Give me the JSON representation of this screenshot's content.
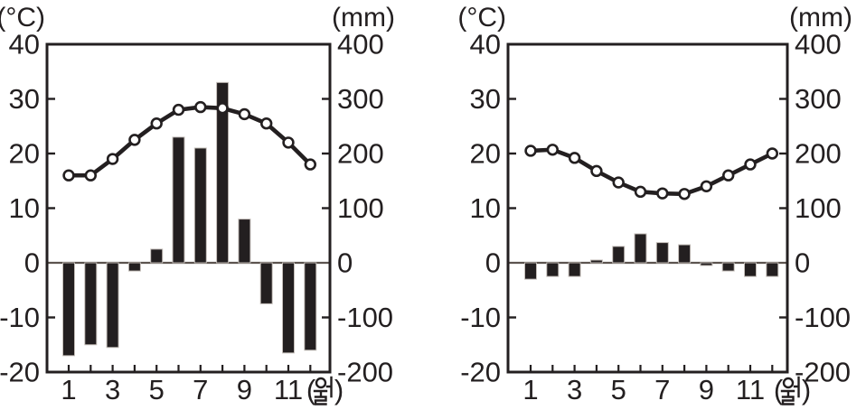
{
  "colors": {
    "ink": "#231f20",
    "background": "#ffffff",
    "marker_fill": "#ffffff",
    "zero_line": "#5c544f",
    "bar_outline": "#c4beb9"
  },
  "chart_data": [
    {
      "name": "climograph-left",
      "type": "combo-bar-line",
      "layout": {
        "grid": false,
        "legend": false
      },
      "temperature_axis": {
        "unit_label": "(°C)",
        "min": -20,
        "max": 40,
        "ticks": [
          40,
          30,
          20,
          10,
          0,
          -10,
          -20
        ]
      },
      "precipitation_axis": {
        "unit_label": "(mm)",
        "min": -200,
        "max": 400,
        "ticks": [
          400,
          300,
          200,
          100,
          0,
          -100,
          -200
        ]
      },
      "x_axis": {
        "unit_label": "(월)",
        "unit_label_parts": {
          "open": "(",
          "close": ")"
        },
        "months": [
          1,
          2,
          3,
          4,
          5,
          6,
          7,
          8,
          9,
          10,
          11,
          12
        ],
        "labeled_months": [
          1,
          3,
          5,
          7,
          9,
          11
        ]
      },
      "line_series": {
        "name": "temperature",
        "unit": "°C",
        "axis": "left",
        "marker": "open-circle",
        "values": [
          16,
          16,
          19,
          22.5,
          25.5,
          28,
          28.5,
          28.3,
          27.2,
          25.5,
          22,
          18
        ]
      },
      "bar_series": {
        "name": "precipitation-bars",
        "unit": "mm",
        "axis": "right",
        "values": [
          -170,
          -150,
          -155,
          -15,
          25,
          230,
          210,
          330,
          80,
          -75,
          -165,
          -160
        ]
      }
    },
    {
      "name": "climograph-right",
      "type": "combo-bar-line",
      "layout": {
        "grid": false,
        "legend": false
      },
      "temperature_axis": {
        "unit_label": "(°C)",
        "min": -20,
        "max": 40,
        "ticks": [
          40,
          30,
          20,
          10,
          0,
          -10,
          -20
        ]
      },
      "precipitation_axis": {
        "unit_label": "(mm)",
        "min": -200,
        "max": 400,
        "ticks": [
          400,
          300,
          200,
          100,
          0,
          -100,
          -200
        ]
      },
      "x_axis": {
        "unit_label": "(월)",
        "unit_label_parts": {
          "open": "(",
          "close": ")"
        },
        "months": [
          1,
          2,
          3,
          4,
          5,
          6,
          7,
          8,
          9,
          10,
          11,
          12
        ],
        "labeled_months": [
          1,
          3,
          5,
          7,
          9,
          11
        ]
      },
      "line_series": {
        "name": "temperature",
        "unit": "°C",
        "axis": "left",
        "marker": "open-circle",
        "values": [
          20.5,
          20.7,
          19.2,
          16.8,
          14.7,
          13,
          12.7,
          12.6,
          14,
          16,
          18,
          20
        ]
      },
      "bar_series": {
        "name": "precipitation-bars",
        "unit": "mm",
        "axis": "right",
        "values": [
          -30,
          -25,
          -25,
          5,
          30,
          53,
          37,
          33,
          -5,
          -15,
          -25,
          -25
        ]
      }
    }
  ]
}
